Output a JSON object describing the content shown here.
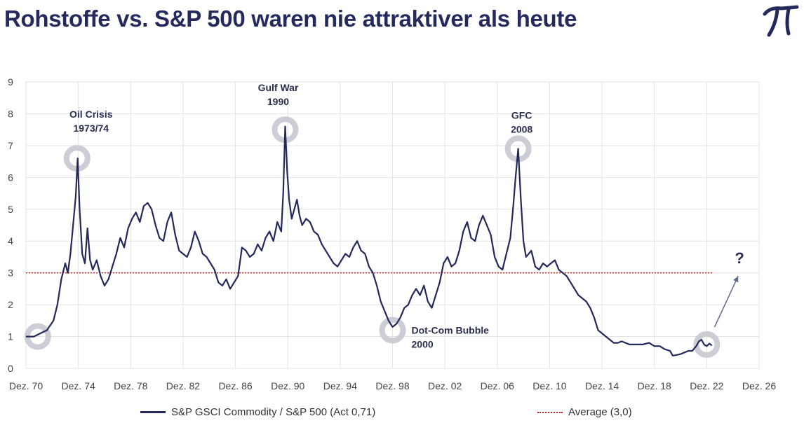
{
  "header": {
    "title": "Rohstoffe vs. S&P 500 waren nie attraktiver als heute",
    "logo_icon": "pi-logo-icon"
  },
  "colors": {
    "series": "#24285a",
    "average": "#cc1f1f",
    "circle": "#c8c8d0",
    "grid": "#e3e3e3",
    "arrow": "#5a6a88"
  },
  "legend": {
    "series_label": "S&P GSCI Commodity / S&P 500 (Act 0,71)",
    "average_label": "Average (3,0)"
  },
  "chart_data": {
    "type": "line",
    "title": "Rohstoffe vs. S&P 500 waren nie attraktiver als heute",
    "xlim": [
      1970.9,
      2026.9
    ],
    "ylim": [
      0,
      9
    ],
    "grid": true,
    "legend_position": "bottom",
    "x_ticks": [
      {
        "x": 1970.9,
        "label": "Dez. 70"
      },
      {
        "x": 1974.9,
        "label": "Dez. 74"
      },
      {
        "x": 1978.9,
        "label": "Dez. 78"
      },
      {
        "x": 1982.9,
        "label": "Dez. 82"
      },
      {
        "x": 1986.9,
        "label": "Dez. 86"
      },
      {
        "x": 1990.9,
        "label": "Dez. 90"
      },
      {
        "x": 1994.9,
        "label": "Dez. 94"
      },
      {
        "x": 1998.9,
        "label": "Dez. 98"
      },
      {
        "x": 2002.9,
        "label": "Dez. 02"
      },
      {
        "x": 2006.9,
        "label": "Dez. 06"
      },
      {
        "x": 2010.9,
        "label": "Dez. 10"
      },
      {
        "x": 2014.9,
        "label": "Dez. 14"
      },
      {
        "x": 2018.9,
        "label": "Dez. 18"
      },
      {
        "x": 2022.9,
        "label": "Dez. 22"
      },
      {
        "x": 2026.9,
        "label": "Dez. 26"
      }
    ],
    "y_ticks": [
      0,
      1,
      2,
      3,
      4,
      5,
      6,
      7,
      8,
      9
    ],
    "average": 3.0,
    "series": [
      {
        "name": "S&P GSCI Commodity / S&P 500 (Act 0,71)",
        "points": [
          [
            1970.9,
            1.0
          ],
          [
            1971.5,
            1.0
          ],
          [
            1972.0,
            1.1
          ],
          [
            1972.5,
            1.2
          ],
          [
            1973.0,
            1.5
          ],
          [
            1973.3,
            2.0
          ],
          [
            1973.6,
            2.8
          ],
          [
            1973.9,
            3.3
          ],
          [
            1974.1,
            3.0
          ],
          [
            1974.3,
            3.6
          ],
          [
            1974.5,
            4.5
          ],
          [
            1974.7,
            5.4
          ],
          [
            1974.85,
            6.6
          ],
          [
            1975.0,
            5.0
          ],
          [
            1975.2,
            3.6
          ],
          [
            1975.4,
            3.3
          ],
          [
            1975.6,
            4.4
          ],
          [
            1975.8,
            3.4
          ],
          [
            1976.0,
            3.1
          ],
          [
            1976.3,
            3.4
          ],
          [
            1976.6,
            2.9
          ],
          [
            1976.9,
            2.6
          ],
          [
            1977.2,
            2.8
          ],
          [
            1977.5,
            3.2
          ],
          [
            1977.8,
            3.6
          ],
          [
            1978.1,
            4.1
          ],
          [
            1978.4,
            3.8
          ],
          [
            1978.7,
            4.4
          ],
          [
            1979.0,
            4.7
          ],
          [
            1979.3,
            4.9
          ],
          [
            1979.6,
            4.6
          ],
          [
            1979.9,
            5.1
          ],
          [
            1980.2,
            5.2
          ],
          [
            1980.5,
            5.0
          ],
          [
            1980.8,
            4.5
          ],
          [
            1981.1,
            4.1
          ],
          [
            1981.4,
            4.0
          ],
          [
            1981.7,
            4.6
          ],
          [
            1982.0,
            4.9
          ],
          [
            1982.3,
            4.2
          ],
          [
            1982.6,
            3.7
          ],
          [
            1982.9,
            3.6
          ],
          [
            1983.2,
            3.5
          ],
          [
            1983.5,
            3.8
          ],
          [
            1983.8,
            4.3
          ],
          [
            1984.1,
            4.0
          ],
          [
            1984.4,
            3.6
          ],
          [
            1984.7,
            3.5
          ],
          [
            1985.0,
            3.3
          ],
          [
            1985.3,
            3.1
          ],
          [
            1985.6,
            2.7
          ],
          [
            1985.9,
            2.6
          ],
          [
            1986.2,
            2.8
          ],
          [
            1986.5,
            2.5
          ],
          [
            1986.8,
            2.7
          ],
          [
            1987.1,
            2.9
          ],
          [
            1987.4,
            3.8
          ],
          [
            1987.7,
            3.7
          ],
          [
            1988.0,
            3.5
          ],
          [
            1988.3,
            3.6
          ],
          [
            1988.6,
            3.9
          ],
          [
            1988.9,
            3.7
          ],
          [
            1989.2,
            4.1
          ],
          [
            1989.5,
            4.3
          ],
          [
            1989.8,
            4.0
          ],
          [
            1990.1,
            4.6
          ],
          [
            1990.4,
            4.3
          ],
          [
            1990.55,
            5.5
          ],
          [
            1990.7,
            7.6
          ],
          [
            1990.85,
            6.2
          ],
          [
            1991.0,
            5.3
          ],
          [
            1991.2,
            4.7
          ],
          [
            1991.4,
            5.0
          ],
          [
            1991.6,
            5.3
          ],
          [
            1991.8,
            4.8
          ],
          [
            1992.0,
            4.5
          ],
          [
            1992.3,
            4.7
          ],
          [
            1992.6,
            4.6
          ],
          [
            1992.9,
            4.3
          ],
          [
            1993.2,
            4.2
          ],
          [
            1993.5,
            3.9
          ],
          [
            1993.8,
            3.7
          ],
          [
            1994.1,
            3.5
          ],
          [
            1994.4,
            3.3
          ],
          [
            1994.7,
            3.2
          ],
          [
            1995.0,
            3.4
          ],
          [
            1995.3,
            3.6
          ],
          [
            1995.6,
            3.5
          ],
          [
            1995.9,
            3.8
          ],
          [
            1996.2,
            4.0
          ],
          [
            1996.5,
            3.7
          ],
          [
            1996.8,
            3.6
          ],
          [
            1997.1,
            3.2
          ],
          [
            1997.4,
            3.0
          ],
          [
            1997.7,
            2.6
          ],
          [
            1998.0,
            2.1
          ],
          [
            1998.3,
            1.8
          ],
          [
            1998.6,
            1.5
          ],
          [
            1998.9,
            1.3
          ],
          [
            1999.2,
            1.4
          ],
          [
            1999.5,
            1.6
          ],
          [
            1999.8,
            1.9
          ],
          [
            2000.1,
            2.0
          ],
          [
            2000.4,
            2.3
          ],
          [
            2000.7,
            2.5
          ],
          [
            2001.0,
            2.3
          ],
          [
            2001.3,
            2.6
          ],
          [
            2001.6,
            2.1
          ],
          [
            2001.9,
            1.9
          ],
          [
            2002.2,
            2.3
          ],
          [
            2002.5,
            2.7
          ],
          [
            2002.8,
            3.3
          ],
          [
            2003.1,
            3.5
          ],
          [
            2003.4,
            3.2
          ],
          [
            2003.7,
            3.3
          ],
          [
            2004.0,
            3.7
          ],
          [
            2004.3,
            4.3
          ],
          [
            2004.6,
            4.6
          ],
          [
            2004.9,
            4.1
          ],
          [
            2005.2,
            4.0
          ],
          [
            2005.5,
            4.5
          ],
          [
            2005.8,
            4.8
          ],
          [
            2006.1,
            4.5
          ],
          [
            2006.4,
            4.2
          ],
          [
            2006.7,
            3.5
          ],
          [
            2007.0,
            3.2
          ],
          [
            2007.3,
            3.1
          ],
          [
            2007.6,
            3.6
          ],
          [
            2007.9,
            4.1
          ],
          [
            2008.1,
            5.0
          ],
          [
            2008.3,
            6.0
          ],
          [
            2008.5,
            6.9
          ],
          [
            2008.7,
            5.3
          ],
          [
            2008.9,
            4.0
          ],
          [
            2009.1,
            3.5
          ],
          [
            2009.3,
            3.6
          ],
          [
            2009.5,
            3.7
          ],
          [
            2009.8,
            3.2
          ],
          [
            2010.1,
            3.1
          ],
          [
            2010.4,
            3.3
          ],
          [
            2010.7,
            3.2
          ],
          [
            2011.0,
            3.3
          ],
          [
            2011.3,
            3.4
          ],
          [
            2011.6,
            3.1
          ],
          [
            2011.9,
            3.0
          ],
          [
            2012.2,
            2.9
          ],
          [
            2012.5,
            2.7
          ],
          [
            2012.8,
            2.5
          ],
          [
            2013.1,
            2.3
          ],
          [
            2013.4,
            2.2
          ],
          [
            2013.7,
            2.1
          ],
          [
            2014.0,
            1.9
          ],
          [
            2014.3,
            1.6
          ],
          [
            2014.6,
            1.2
          ],
          [
            2014.9,
            1.1
          ],
          [
            2015.2,
            1.0
          ],
          [
            2015.5,
            0.9
          ],
          [
            2015.8,
            0.8
          ],
          [
            2016.1,
            0.8
          ],
          [
            2016.4,
            0.85
          ],
          [
            2016.7,
            0.8
          ],
          [
            2017.0,
            0.75
          ],
          [
            2017.5,
            0.75
          ],
          [
            2018.0,
            0.75
          ],
          [
            2018.5,
            0.8
          ],
          [
            2018.9,
            0.7
          ],
          [
            2019.3,
            0.7
          ],
          [
            2019.7,
            0.6
          ],
          [
            2020.1,
            0.55
          ],
          [
            2020.3,
            0.4
          ],
          [
            2020.6,
            0.42
          ],
          [
            2020.9,
            0.45
          ],
          [
            2021.2,
            0.5
          ],
          [
            2021.5,
            0.55
          ],
          [
            2021.8,
            0.55
          ],
          [
            2022.1,
            0.7
          ],
          [
            2022.3,
            0.85
          ],
          [
            2022.5,
            0.9
          ],
          [
            2022.7,
            0.75
          ],
          [
            2022.9,
            0.7
          ],
          [
            2023.1,
            0.78
          ],
          [
            2023.3,
            0.72
          ]
        ]
      }
    ],
    "annotations": [
      {
        "label_lines": [
          "Oil Crisis",
          "1973/74"
        ],
        "x": 1974.8,
        "y": 6.6
      },
      {
        "label_lines": [
          "Gulf War",
          "1990"
        ],
        "x": 1990.7,
        "y": 7.5
      },
      {
        "label_lines": [
          "GFC",
          "2008"
        ],
        "x": 2008.5,
        "y": 6.9
      },
      {
        "label_lines": [
          "Dot-Com Bubble",
          "2000"
        ],
        "x": 1998.9,
        "y": 1.2
      },
      {
        "label_lines": [],
        "x": 1971.8,
        "y": 1.0
      },
      {
        "label_lines": [],
        "x": 2022.9,
        "y": 0.75
      }
    ],
    "forecast_label": "?"
  }
}
